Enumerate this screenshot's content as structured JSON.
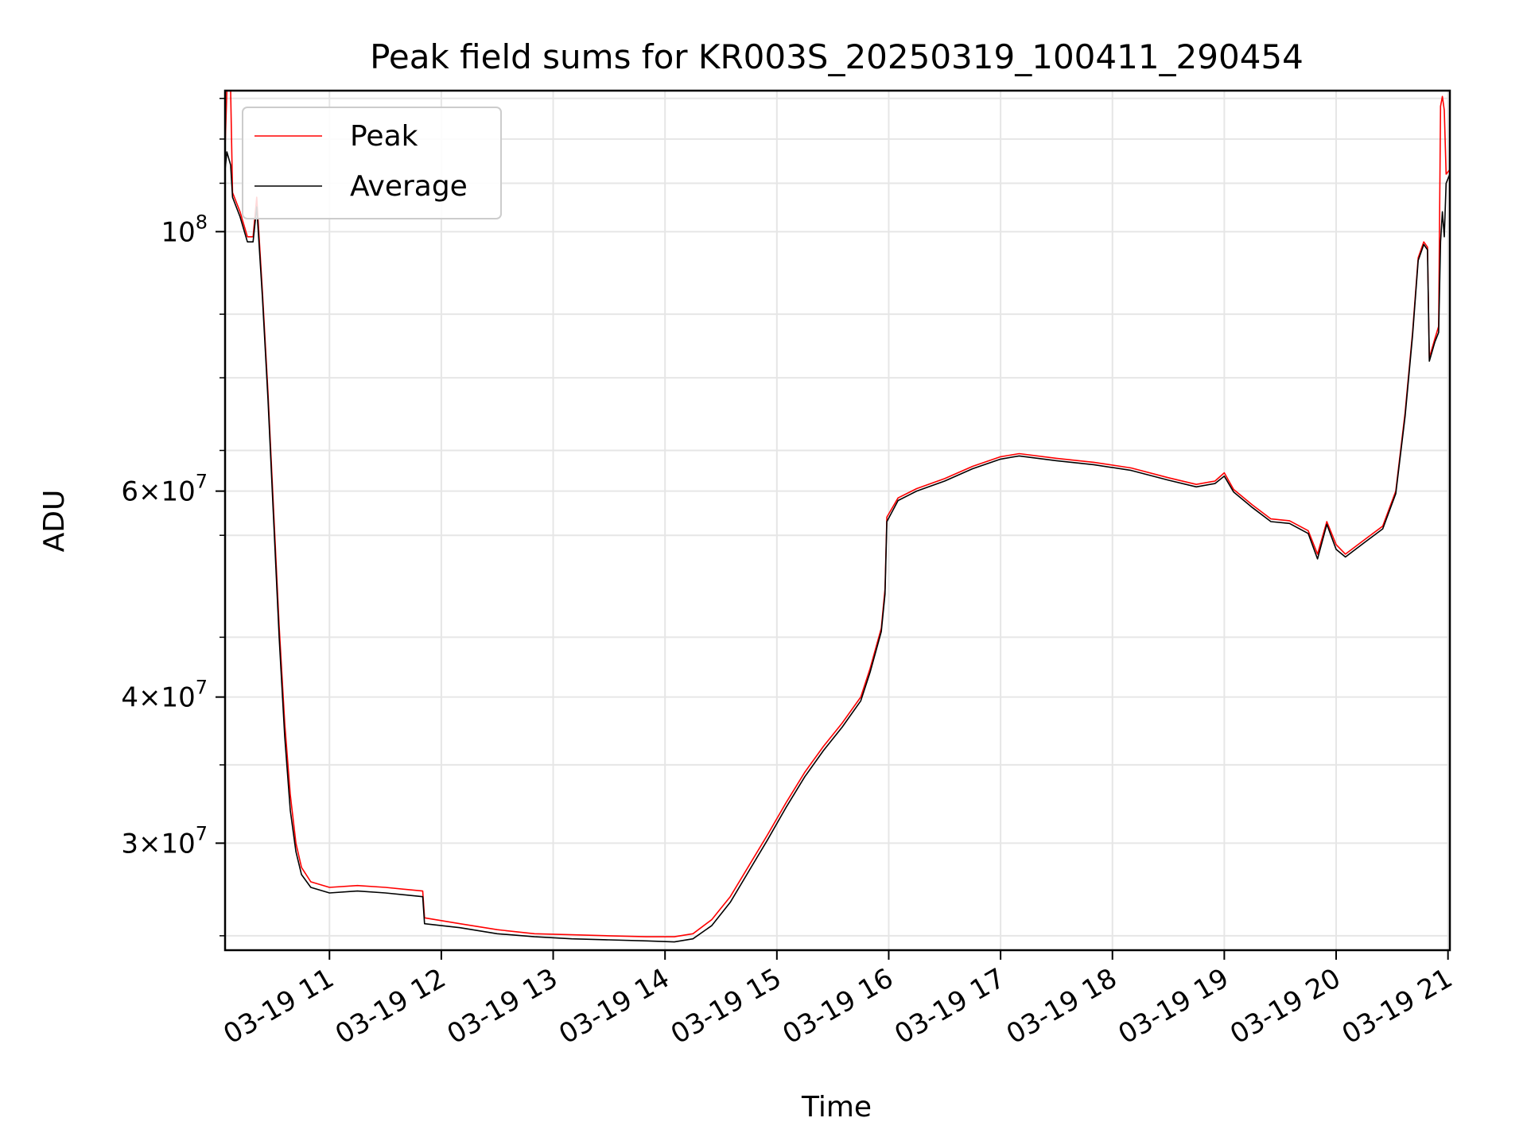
{
  "chart_data": {
    "type": "line",
    "title": "Peak field sums for KR003S_20250319_100411_290454",
    "xlabel": "Time",
    "ylabel": "ADU",
    "y_scale": "log",
    "grid": true,
    "legend_position": "top-left",
    "xlim": [
      "2025-03-19 10:04",
      "2025-03-19 21:01"
    ],
    "ylim": [
      24300000,
      132000000
    ],
    "x_ticks": [
      "03-19 11",
      "03-19 12",
      "03-19 13",
      "03-19 14",
      "03-19 15",
      "03-19 16",
      "03-19 17",
      "03-19 18",
      "03-19 19",
      "03-19 20",
      "03-19 21"
    ],
    "y_ticks": [
      {
        "value": 30000000,
        "base": "3",
        "exp": "7"
      },
      {
        "value": 40000000,
        "base": "4",
        "exp": "7"
      },
      {
        "value": 60000000,
        "base": "6",
        "exp": "7"
      },
      {
        "value": 100000000,
        "base": "10",
        "exp": "8"
      }
    ],
    "series": [
      {
        "name": "Peak",
        "color": "#ff0000",
        "points": [
          [
            "2025-03-19 10:04",
            118000000
          ],
          [
            "2025-03-19 10:05",
            132000000
          ],
          [
            "2025-03-19 10:07",
            132000000
          ],
          [
            "2025-03-19 10:08",
            108000000
          ],
          [
            "2025-03-19 10:12",
            104000000
          ],
          [
            "2025-03-19 10:16",
            99000000
          ],
          [
            "2025-03-19 10:19",
            99000000
          ],
          [
            "2025-03-19 10:21",
            107000000
          ],
          [
            "2025-03-19 10:24",
            89000000
          ],
          [
            "2025-03-19 10:27",
            73000000
          ],
          [
            "2025-03-19 10:30",
            58000000
          ],
          [
            "2025-03-19 10:33",
            46000000
          ],
          [
            "2025-03-19 10:36",
            38000000
          ],
          [
            "2025-03-19 10:39",
            33000000
          ],
          [
            "2025-03-19 10:42",
            30000000
          ],
          [
            "2025-03-19 10:45",
            28600000
          ],
          [
            "2025-03-19 10:50",
            27800000
          ],
          [
            "2025-03-19 11:00",
            27500000
          ],
          [
            "2025-03-19 11:15",
            27600000
          ],
          [
            "2025-03-19 11:30",
            27500000
          ],
          [
            "2025-03-19 11:50",
            27300000
          ],
          [
            "2025-03-19 11:51",
            25900000
          ],
          [
            "2025-03-19 12:10",
            25600000
          ],
          [
            "2025-03-19 12:30",
            25300000
          ],
          [
            "2025-03-19 12:50",
            25100000
          ],
          [
            "2025-03-19 13:10",
            25050000
          ],
          [
            "2025-03-19 13:30",
            25000000
          ],
          [
            "2025-03-19 13:50",
            24950000
          ],
          [
            "2025-03-19 14:05",
            24950000
          ],
          [
            "2025-03-19 14:15",
            25100000
          ],
          [
            "2025-03-19 14:25",
            25800000
          ],
          [
            "2025-03-19 14:35",
            27000000
          ],
          [
            "2025-03-19 14:45",
            28700000
          ],
          [
            "2025-03-19 14:55",
            30500000
          ],
          [
            "2025-03-19 15:05",
            32500000
          ],
          [
            "2025-03-19 15:15",
            34500000
          ],
          [
            "2025-03-19 15:25",
            36300000
          ],
          [
            "2025-03-19 15:35",
            38000000
          ],
          [
            "2025-03-19 15:45",
            40000000
          ],
          [
            "2025-03-19 15:50",
            42300000
          ],
          [
            "2025-03-19 15:56",
            45800000
          ],
          [
            "2025-03-19 15:58",
            49500000
          ],
          [
            "2025-03-19 15:59",
            57000000
          ],
          [
            "2025-03-19 16:05",
            59200000
          ],
          [
            "2025-03-19 16:15",
            60300000
          ],
          [
            "2025-03-19 16:30",
            61500000
          ],
          [
            "2025-03-19 16:45",
            63000000
          ],
          [
            "2025-03-19 17:00",
            64200000
          ],
          [
            "2025-03-19 17:10",
            64600000
          ],
          [
            "2025-03-19 17:30",
            64000000
          ],
          [
            "2025-03-19 17:50",
            63500000
          ],
          [
            "2025-03-19 18:10",
            62800000
          ],
          [
            "2025-03-19 18:30",
            61600000
          ],
          [
            "2025-03-19 18:45",
            60800000
          ],
          [
            "2025-03-19 18:55",
            61200000
          ],
          [
            "2025-03-19 19:00",
            62200000
          ],
          [
            "2025-03-19 19:05",
            60200000
          ],
          [
            "2025-03-19 19:15",
            58400000
          ],
          [
            "2025-03-19 19:25",
            56800000
          ],
          [
            "2025-03-19 19:35",
            56600000
          ],
          [
            "2025-03-19 19:45",
            55500000
          ],
          [
            "2025-03-19 19:50",
            53000000
          ],
          [
            "2025-03-19 19:55",
            56500000
          ],
          [
            "2025-03-19 20:00",
            54000000
          ],
          [
            "2025-03-19 20:05",
            53000000
          ],
          [
            "2025-03-19 20:15",
            54500000
          ],
          [
            "2025-03-19 20:25",
            56000000
          ],
          [
            "2025-03-19 20:32",
            60000000
          ],
          [
            "2025-03-19 20:37",
            70000000
          ],
          [
            "2025-03-19 20:41",
            82000000
          ],
          [
            "2025-03-19 20:44",
            95000000
          ],
          [
            "2025-03-19 20:47",
            98000000
          ],
          [
            "2025-03-19 20:49",
            97000000
          ],
          [
            "2025-03-19 20:50",
            78000000
          ],
          [
            "2025-03-19 20:53",
            81000000
          ],
          [
            "2025-03-19 20:55",
            83000000
          ],
          [
            "2025-03-19 20:56",
            128000000
          ],
          [
            "2025-03-19 20:57",
            130500000
          ],
          [
            "2025-03-19 20:58",
            127000000
          ],
          [
            "2025-03-19 20:59",
            112000000
          ],
          [
            "2025-03-19 21:01",
            113000000
          ]
        ]
      },
      {
        "name": "Average",
        "color": "#000000",
        "points": [
          [
            "2025-03-19 10:04",
            113000000
          ],
          [
            "2025-03-19 10:05",
            117000000
          ],
          [
            "2025-03-19 10:07",
            114000000
          ],
          [
            "2025-03-19 10:08",
            107000000
          ],
          [
            "2025-03-19 10:12",
            103000000
          ],
          [
            "2025-03-19 10:16",
            98000000
          ],
          [
            "2025-03-19 10:19",
            98000000
          ],
          [
            "2025-03-19 10:21",
            105000000
          ],
          [
            "2025-03-19 10:24",
            88000000
          ],
          [
            "2025-03-19 10:27",
            72000000
          ],
          [
            "2025-03-19 10:30",
            57000000
          ],
          [
            "2025-03-19 10:33",
            45000000
          ],
          [
            "2025-03-19 10:36",
            37000000
          ],
          [
            "2025-03-19 10:39",
            32000000
          ],
          [
            "2025-03-19 10:42",
            29500000
          ],
          [
            "2025-03-19 10:45",
            28200000
          ],
          [
            "2025-03-19 10:50",
            27500000
          ],
          [
            "2025-03-19 11:00",
            27200000
          ],
          [
            "2025-03-19 11:15",
            27300000
          ],
          [
            "2025-03-19 11:30",
            27200000
          ],
          [
            "2025-03-19 11:50",
            27000000
          ],
          [
            "2025-03-19 11:51",
            25600000
          ],
          [
            "2025-03-19 12:10",
            25400000
          ],
          [
            "2025-03-19 12:30",
            25100000
          ],
          [
            "2025-03-19 12:50",
            24950000
          ],
          [
            "2025-03-19 13:10",
            24850000
          ],
          [
            "2025-03-19 13:30",
            24800000
          ],
          [
            "2025-03-19 13:50",
            24750000
          ],
          [
            "2025-03-19 14:05",
            24700000
          ],
          [
            "2025-03-19 14:15",
            24850000
          ],
          [
            "2025-03-19 14:25",
            25500000
          ],
          [
            "2025-03-19 14:35",
            26700000
          ],
          [
            "2025-03-19 14:45",
            28400000
          ],
          [
            "2025-03-19 14:55",
            30200000
          ],
          [
            "2025-03-19 15:05",
            32200000
          ],
          [
            "2025-03-19 15:15",
            34200000
          ],
          [
            "2025-03-19 15:25",
            36000000
          ],
          [
            "2025-03-19 15:35",
            37700000
          ],
          [
            "2025-03-19 15:45",
            39700000
          ],
          [
            "2025-03-19 15:50",
            42000000
          ],
          [
            "2025-03-19 15:56",
            45500000
          ],
          [
            "2025-03-19 15:58",
            49000000
          ],
          [
            "2025-03-19 15:59",
            56500000
          ],
          [
            "2025-03-19 16:05",
            58900000
          ],
          [
            "2025-03-19 16:15",
            60000000
          ],
          [
            "2025-03-19 16:30",
            61200000
          ],
          [
            "2025-03-19 16:45",
            62700000
          ],
          [
            "2025-03-19 17:00",
            63900000
          ],
          [
            "2025-03-19 17:10",
            64300000
          ],
          [
            "2025-03-19 17:30",
            63700000
          ],
          [
            "2025-03-19 17:50",
            63200000
          ],
          [
            "2025-03-19 18:10",
            62500000
          ],
          [
            "2025-03-19 18:30",
            61300000
          ],
          [
            "2025-03-19 18:45",
            60500000
          ],
          [
            "2025-03-19 18:55",
            60900000
          ],
          [
            "2025-03-19 19:00",
            61800000
          ],
          [
            "2025-03-19 19:05",
            59900000
          ],
          [
            "2025-03-19 19:15",
            58100000
          ],
          [
            "2025-03-19 19:25",
            56500000
          ],
          [
            "2025-03-19 19:35",
            56300000
          ],
          [
            "2025-03-19 19:45",
            55200000
          ],
          [
            "2025-03-19 19:50",
            52500000
          ],
          [
            "2025-03-19 19:55",
            56200000
          ],
          [
            "2025-03-19 20:00",
            53500000
          ],
          [
            "2025-03-19 20:05",
            52700000
          ],
          [
            "2025-03-19 20:15",
            54200000
          ],
          [
            "2025-03-19 20:25",
            55700000
          ],
          [
            "2025-03-19 20:32",
            59700000
          ],
          [
            "2025-03-19 20:37",
            69500000
          ],
          [
            "2025-03-19 20:41",
            81500000
          ],
          [
            "2025-03-19 20:44",
            94500000
          ],
          [
            "2025-03-19 20:47",
            97500000
          ],
          [
            "2025-03-19 20:49",
            96500000
          ],
          [
            "2025-03-19 20:50",
            77500000
          ],
          [
            "2025-03-19 20:53",
            80500000
          ],
          [
            "2025-03-19 20:55",
            82000000
          ],
          [
            "2025-03-19 20:56",
            98000000
          ],
          [
            "2025-03-19 20:57",
            104000000
          ],
          [
            "2025-03-19 20:58",
            99000000
          ],
          [
            "2025-03-19 20:59",
            110000000
          ],
          [
            "2025-03-19 21:01",
            112000000
          ]
        ]
      }
    ]
  }
}
